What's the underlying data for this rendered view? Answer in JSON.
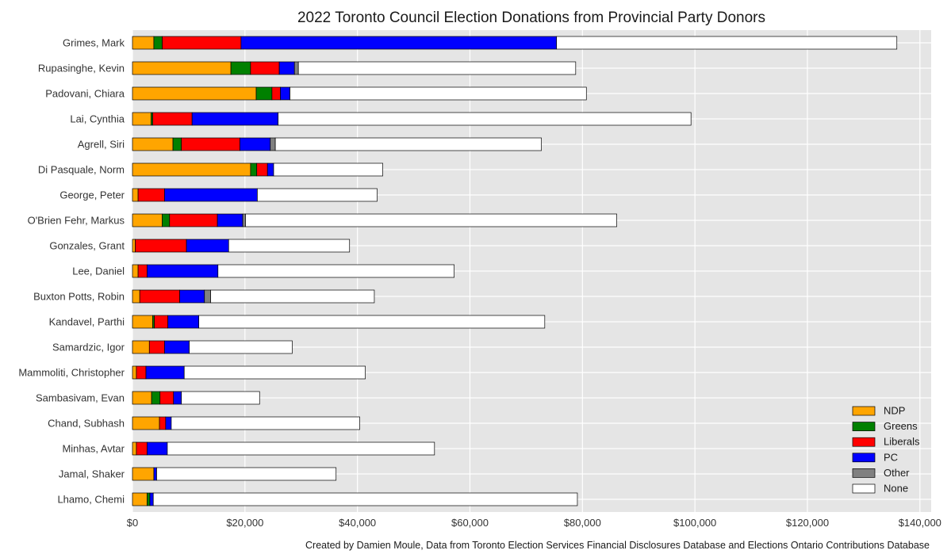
{
  "chart_data": {
    "type": "bar",
    "orientation": "horizontal",
    "stacked": true,
    "title": "2022 Toronto Council Election Donations from Provincial Party Donors",
    "caption": "Created by Damien Moule, Data from Toronto Election Services Financial Disclosures Database and Elections Ontario Contributions Database",
    "xlabel": "",
    "ylabel": "",
    "xlim": [
      0,
      142000
    ],
    "x_ticks": [
      0,
      20000,
      40000,
      60000,
      80000,
      100000,
      120000,
      140000
    ],
    "x_tick_labels": [
      "$0",
      "$20,000",
      "$40,000",
      "$60,000",
      "$80,000",
      "$100,000",
      "$120,000",
      "$140,000"
    ],
    "grid": true,
    "legend_position": "lower-right",
    "categories": [
      "Grimes, Mark",
      "Rupasinghe, Kevin",
      "Padovani, Chiara",
      "Lai, Cynthia",
      "Agrell, Siri",
      "Di Pasquale, Norm",
      "George, Peter",
      "O'Brien Fehr, Markus",
      "Gonzales, Grant",
      "Lee, Daniel",
      "Buxton Potts, Robin",
      "Kandavel, Parthi",
      "Samardzic, Igor",
      "Mammoliti, Christopher",
      "Sambasivam, Evan",
      "Chand, Subhash",
      "Minhas, Avtar",
      "Jamal, Shaker",
      "Lhamo, Chemi"
    ],
    "series": [
      {
        "name": "NDP",
        "color": "#ffa500",
        "values": [
          3800,
          17500,
          22000,
          3300,
          7200,
          21000,
          1000,
          5300,
          500,
          1000,
          1300,
          3600,
          3000,
          700,
          3400,
          4800,
          700,
          3800,
          2600
        ]
      },
      {
        "name": "Greens",
        "color": "#008000",
        "values": [
          1500,
          3500,
          2800,
          300,
          1500,
          1100,
          0,
          1300,
          0,
          0,
          0,
          300,
          0,
          0,
          1500,
          0,
          0,
          0,
          500
        ]
      },
      {
        "name": "Liberals",
        "color": "#ff0000",
        "values": [
          14000,
          5100,
          1500,
          7000,
          10400,
          1900,
          4700,
          8500,
          9100,
          1600,
          7100,
          2400,
          2700,
          1700,
          2400,
          1100,
          1900,
          0,
          0
        ]
      },
      {
        "name": "PC",
        "color": "#0000ff",
        "values": [
          56100,
          2700,
          1700,
          15300,
          5400,
          1100,
          16500,
          4500,
          7500,
          12600,
          4400,
          5500,
          4400,
          6800,
          1400,
          1000,
          3600,
          500,
          600
        ]
      },
      {
        "name": "Other",
        "color": "#808080",
        "values": [
          0,
          700,
          0,
          0,
          900,
          0,
          0,
          500,
          0,
          0,
          1100,
          0,
          0,
          0,
          0,
          0,
          0,
          0,
          0
        ]
      },
      {
        "name": "None",
        "color": "#ffffff",
        "values": [
          60500,
          49300,
          52700,
          73400,
          47300,
          19400,
          21300,
          66000,
          21500,
          42000,
          29100,
          61500,
          18300,
          32200,
          13900,
          33500,
          47500,
          31900,
          75400
        ]
      }
    ]
  }
}
